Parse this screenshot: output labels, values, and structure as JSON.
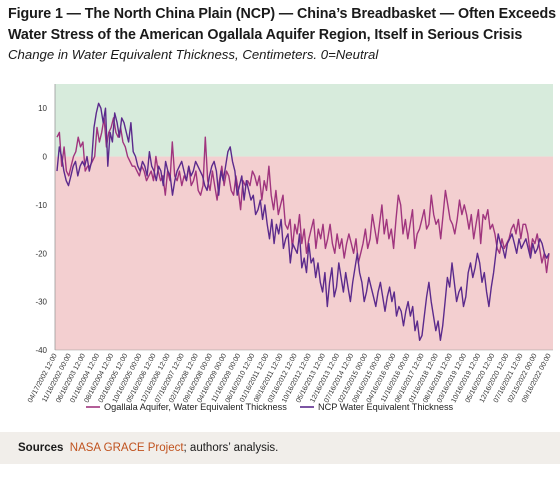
{
  "figure": {
    "title": "Figure 1 — The North China Plain (NCP) — China’s Breadbasket — Often Exceeds Water Stress of the American Ogallala Aquifer Region, Itself in Serious Crisis",
    "subtitle": "Change in Water Equivalent Thickness, Centimeters. 0=Neutral"
  },
  "sources": {
    "label": "Sources",
    "source_name": "NASA GRACE Project",
    "rest": "; authors’ analysis."
  },
  "colors": {
    "positive_zone": "#d7ebdc",
    "negative_zone": "#f3cfd0",
    "ogallala": "#a0357e",
    "ncp": "#5b2a8c"
  },
  "chart_data": {
    "type": "line",
    "ylim": [
      -40,
      15
    ],
    "yticks": [
      10,
      0,
      -10,
      -20,
      -30,
      -40
    ],
    "xlabel": "",
    "ylabel": "",
    "legend_position": "bottom",
    "x_ticks": [
      "04/17/2002 12:00",
      "11/16/2002 00:00",
      "06/16/2003 12:00",
      "01/16/2004 12:00",
      "08/16/2004 12:00",
      "03/16/2005 12:00",
      "10/16/2005 00:00",
      "05/16/2006 12:00",
      "12/16/2006 12:00",
      "07/16/2007 12:00",
      "02/15/2008 12:00",
      "09/16/2008 00:00",
      "04/16/2009 00:00",
      "11/16/2009 00:00",
      "06/16/2010 12:00",
      "01/16/2011 12:00",
      "08/16/2011 12:00",
      "03/16/2012 12:00",
      "10/16/2012 12:00",
      "05/16/2013 12:00",
      "12/16/2013 12:00",
      "07/16/2014 12:00",
      "02/15/2015 00:00",
      "09/16/2015 00:00",
      "04/16/2016 00:00",
      "11/16/2016 00:00",
      "06/16/2017 12:00",
      "01/16/2018 12:00",
      "08/16/2018 12:00",
      "03/16/2019 12:00",
      "10/16/2019 12:00",
      "05/16/2020 12:00",
      "12/16/2020 12:00",
      "07/16/2021 12:00",
      "02/15/2022 00:00",
      "09/16/2022 00:00"
    ],
    "series": [
      {
        "name": "Ogallala Aquifer, Water Equivalent Thickness",
        "color": "#a0357e",
        "values": [
          4,
          5,
          -2,
          2,
          -3,
          -4,
          -2,
          0,
          1,
          4,
          2,
          3,
          -3,
          -2,
          -2,
          -1,
          0,
          6,
          3,
          5,
          8,
          2,
          5,
          6,
          8,
          5,
          4,
          6,
          3,
          2,
          0,
          -1,
          -2,
          -2,
          -3,
          -4,
          -2,
          -3,
          -5,
          -4,
          -3,
          -5,
          0,
          -3,
          -5,
          -4,
          -8,
          -3,
          -5,
          3,
          -4,
          -5,
          -3,
          -6,
          -4,
          -5,
          -2,
          -6,
          -5,
          -3,
          -7,
          -8,
          -6,
          4,
          -5,
          -7,
          -3,
          -6,
          -9,
          -5,
          -2,
          -6,
          -3,
          -4,
          -7,
          -8,
          -4,
          -7,
          -11,
          -5,
          -6,
          -5,
          -6,
          -3,
          -4,
          -6,
          -4,
          -9,
          -5,
          -7,
          -2,
          -8,
          -11,
          -7,
          -12,
          -10,
          -8,
          -14,
          -15,
          -13,
          -19,
          -14,
          -16,
          -12,
          -18,
          -15,
          -20,
          -17,
          -15,
          -13,
          -19,
          -15,
          -17,
          -14,
          -19,
          -17,
          -14,
          -18,
          -20,
          -16,
          -19,
          -17,
          -21,
          -18,
          -16,
          -18,
          -20,
          -17,
          -22,
          -20,
          -18,
          -15,
          -19,
          -17,
          -12,
          -15,
          -18,
          -14,
          -10,
          -16,
          -13,
          -17,
          -15,
          -19,
          -13,
          -8,
          -10,
          -16,
          -13,
          -17,
          -14,
          -11,
          -19,
          -16,
          -15,
          -13,
          -11,
          -15,
          -14,
          -8,
          -12,
          -14,
          -13,
          -17,
          -12,
          -7,
          -10,
          -13,
          -14,
          -16,
          -13,
          -9,
          -12,
          -10,
          -12,
          -15,
          -12,
          -17,
          -14,
          -11,
          -18,
          -12,
          -13,
          -11,
          -15,
          -14,
          -16,
          -19,
          -20,
          -17,
          -19,
          -18,
          -17,
          -15,
          -14,
          -16,
          -13,
          -17,
          -14,
          -14,
          -16,
          -20,
          -17,
          -18,
          -16,
          -19,
          -22,
          -20,
          -24,
          -20
        ]
      },
      {
        "name": "NCP Water Equivalent Thickness",
        "color": "#5b2a8c",
        "values": [
          -3,
          2,
          0,
          -3,
          -5,
          -6,
          -4,
          -2,
          -1,
          -4,
          -2,
          -1,
          -2,
          0,
          -3,
          -1,
          6,
          9,
          11,
          10,
          7,
          10,
          -2,
          5,
          3,
          9,
          7,
          4,
          8,
          7,
          5,
          3,
          7,
          1,
          0,
          -2,
          -3,
          -1,
          -2,
          -4,
          1,
          -2,
          -3,
          -5,
          -2,
          -3,
          -6,
          -1,
          -3,
          -4,
          -8,
          -5,
          -3,
          -2,
          -1,
          -3,
          -5,
          -2,
          -4,
          -3,
          -1,
          -2,
          -3,
          -4,
          -6,
          -7,
          -4,
          -2,
          -1,
          -3,
          -8,
          -3,
          -5,
          -2,
          1,
          2,
          -1,
          -3,
          -8,
          -6,
          -4,
          -9,
          -5,
          -7,
          -9,
          -8,
          -12,
          -11,
          -9,
          -13,
          -10,
          -14,
          -17,
          -13,
          -18,
          -14,
          -16,
          -13,
          -19,
          -17,
          -16,
          -22,
          -18,
          -19,
          -20,
          -16,
          -23,
          -21,
          -24,
          -18,
          -22,
          -21,
          -25,
          -22,
          -26,
          -28,
          -24,
          -31,
          -26,
          -23,
          -29,
          -27,
          -22,
          -25,
          -28,
          -24,
          -27,
          -30,
          -26,
          -23,
          -20,
          -24,
          -26,
          -30,
          -28,
          -25,
          -27,
          -29,
          -31,
          -28,
          -26,
          -29,
          -32,
          -29,
          -27,
          -30,
          -28,
          -33,
          -31,
          -32,
          -35,
          -32,
          -30,
          -33,
          -31,
          -36,
          -34,
          -38,
          -37,
          -33,
          -29,
          -26,
          -30,
          -33,
          -36,
          -34,
          -38,
          -35,
          -30,
          -25,
          -27,
          -22,
          -26,
          -30,
          -28,
          -27,
          -31,
          -29,
          -24,
          -22,
          -25,
          -23,
          -20,
          -22,
          -26,
          -24,
          -28,
          -31,
          -27,
          -24,
          -20,
          -16,
          -18,
          -19,
          -21,
          -18,
          -17,
          -16,
          -18,
          -20,
          -17,
          -19,
          -18,
          -17,
          -19,
          -21,
          -18,
          -20,
          -19,
          -17,
          -18,
          -20,
          -21,
          -20
        ]
      }
    ]
  }
}
